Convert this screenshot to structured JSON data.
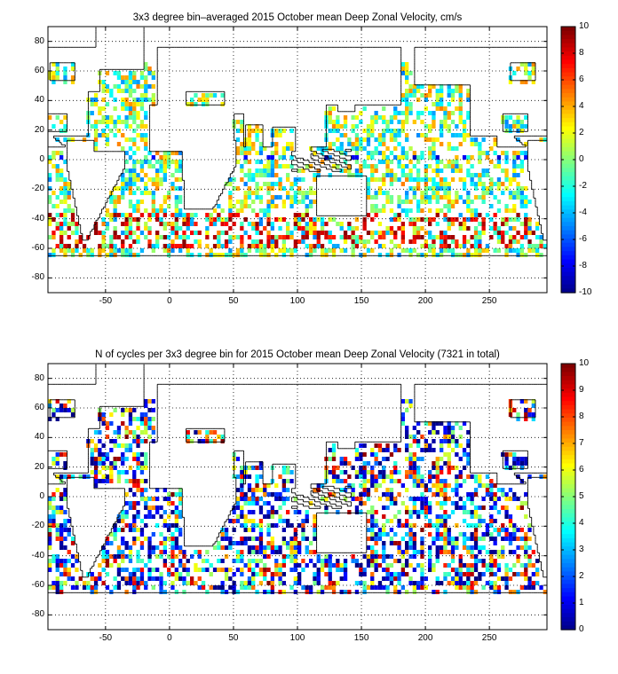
{
  "panels": [
    {
      "id": "top",
      "title": "3x3 degree bin–averaged 2015 October mean Deep Zonal Velocity, cm/s",
      "xticks": [
        "-50",
        "0",
        "50",
        "100",
        "150",
        "200",
        "250"
      ],
      "yticks": [
        "80",
        "60",
        "40",
        "20",
        "0",
        "-20",
        "-40",
        "-60",
        "-80"
      ],
      "colorbar_ticks": [
        "10",
        "8",
        "6",
        "4",
        "2",
        "0",
        "-2",
        "-4",
        "-6",
        "-8",
        "-10"
      ],
      "colorbar_range": [
        -10,
        10
      ],
      "colormap": "jet",
      "grid": "dotted"
    },
    {
      "id": "bottom",
      "title": "N of cycles per 3x3 degree bin for 2015 October mean Deep Zonal Velocity (7321 in total)",
      "xticks": [
        "-50",
        "0",
        "50",
        "100",
        "150",
        "200",
        "250"
      ],
      "yticks": [
        "80",
        "60",
        "40",
        "20",
        "0",
        "-20",
        "-40",
        "-60",
        "-80"
      ],
      "colorbar_ticks": [
        "10",
        "9",
        "8",
        "7",
        "6",
        "5",
        "4",
        "3",
        "2",
        "1",
        "0"
      ],
      "colorbar_range": [
        0,
        10
      ],
      "colormap": "jet",
      "grid": "dotted"
    }
  ],
  "map_extent": {
    "lon": [
      -95,
      295
    ],
    "lat": [
      -90,
      90
    ]
  },
  "colors": {
    "background": "#ffffff",
    "land_outline": "#000000",
    "grid": "#000000"
  }
}
